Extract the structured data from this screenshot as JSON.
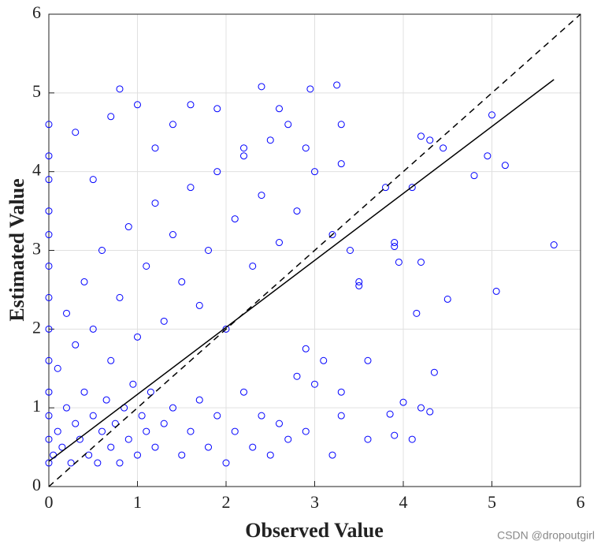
{
  "chart_data": {
    "type": "scatter",
    "xlabel": "Observed Value",
    "ylabel": "Estimated Value",
    "annotation": "CSDN @dropoutgirl",
    "color": "#0000ff",
    "grid": true,
    "xlim": [
      0,
      6
    ],
    "ylim": [
      0,
      6
    ],
    "xticks": [
      0,
      1,
      2,
      3,
      4,
      5,
      6
    ],
    "yticks": [
      0,
      1,
      2,
      3,
      4,
      5,
      6
    ],
    "x": [
      0,
      0,
      0,
      0,
      0,
      0,
      0,
      0,
      0,
      0,
      0,
      0,
      0,
      0.05,
      0.1,
      0.15,
      0.2,
      0.25,
      0.3,
      0.35,
      0.4,
      0.45,
      0.5,
      0.55,
      0.6,
      0.65,
      0.7,
      0.75,
      0.8,
      0.85,
      0.9,
      0.95,
      1.0,
      1.05,
      1.1,
      1.15,
      1.2,
      1.3,
      1.4,
      1.5,
      1.6,
      1.7,
      1.8,
      1.9,
      2.0,
      2.1,
      2.2,
      2.3,
      2.4,
      2.5,
      2.6,
      2.7,
      2.8,
      2.9,
      3.0,
      3.2,
      3.3,
      3.6,
      3.9,
      4.1,
      4.3,
      3.85,
      4.2,
      4.0,
      0.1,
      0.2,
      0.3,
      0.4,
      0.5,
      0.6,
      0.7,
      0.8,
      0.9,
      1.0,
      1.1,
      1.2,
      1.3,
      1.4,
      1.5,
      1.6,
      1.7,
      1.8,
      1.9,
      2.0,
      2.1,
      2.2,
      2.3,
      2.4,
      2.5,
      2.6,
      2.7,
      2.8,
      2.9,
      3.0,
      3.1,
      3.2,
      3.3,
      3.4,
      3.5,
      3.6,
      3.8,
      3.9,
      4.1,
      0.3,
      0.5,
      0.7,
      0.8,
      1.0,
      1.2,
      1.4,
      1.6,
      1.9,
      2.2,
      2.4,
      2.6,
      2.95,
      3.25,
      3.3,
      4.2,
      4.3,
      4.45,
      4.8,
      4.95,
      5.0,
      5.15,
      5.7,
      5.05,
      4.5,
      4.35,
      4.15,
      3.95,
      4.2,
      3.9,
      2.9,
      3.5,
      3.3
    ],
    "values": [
      0.3,
      0.6,
      0.9,
      1.2,
      1.6,
      2.0,
      2.4,
      2.8,
      3.2,
      3.5,
      3.9,
      4.2,
      4.6,
      0.4,
      0.7,
      0.5,
      1.0,
      0.3,
      0.8,
      0.6,
      1.2,
      0.4,
      0.9,
      0.3,
      0.7,
      1.1,
      0.5,
      0.8,
      0.3,
      1.0,
      0.6,
      1.3,
      0.4,
      0.9,
      0.7,
      1.2,
      0.5,
      0.8,
      1.0,
      0.4,
      0.7,
      1.1,
      0.5,
      0.9,
      0.3,
      0.7,
      1.2,
      0.5,
      0.9,
      0.4,
      0.8,
      0.6,
      1.4,
      0.7,
      1.3,
      0.4,
      0.9,
      0.6,
      0.65,
      0.6,
      0.95,
      0.92,
      1.0,
      1.07,
      1.5,
      2.2,
      1.8,
      2.6,
      2.0,
      3.0,
      1.6,
      2.4,
      3.3,
      1.9,
      2.8,
      3.6,
      2.1,
      3.2,
      2.6,
      3.8,
      2.3,
      3.0,
      4.0,
      2.0,
      3.4,
      4.2,
      2.8,
      3.7,
      4.4,
      3.1,
      4.6,
      3.5,
      4.3,
      4.0,
      1.6,
      3.2,
      4.1,
      3.0,
      2.6,
      1.6,
      3.8,
      3.1,
      3.8,
      4.5,
      3.9,
      4.7,
      5.05,
      4.85,
      4.3,
      4.6,
      4.85,
      4.8,
      4.3,
      5.08,
      4.8,
      5.05,
      5.1,
      4.6,
      4.45,
      4.4,
      4.3,
      3.95,
      4.2,
      4.72,
      4.08,
      3.07,
      2.48,
      2.38,
      1.45,
      2.2,
      2.85,
      2.85,
      3.05,
      1.75,
      2.55,
      1.2
    ],
    "lines": [
      {
        "style": "dashed",
        "color": "#000000",
        "x": [
          0,
          6
        ],
        "values": [
          0,
          6
        ]
      },
      {
        "style": "solid",
        "color": "#000000",
        "x": [
          0,
          5.7
        ],
        "values": [
          0.32,
          5.17
        ]
      }
    ]
  }
}
